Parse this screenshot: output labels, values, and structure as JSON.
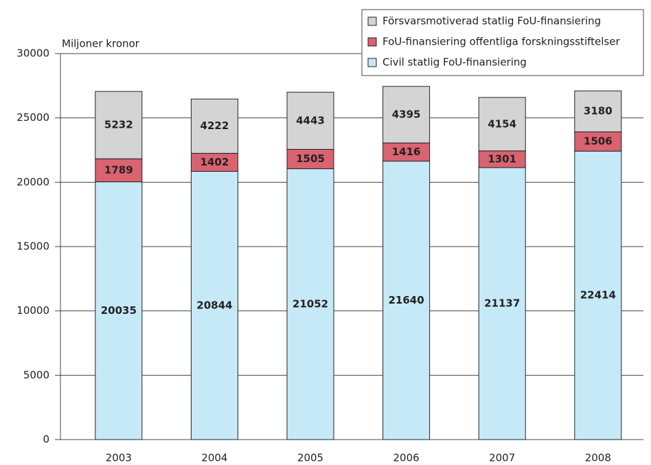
{
  "chart_data": {
    "type": "stacked_bar",
    "y_axis_label": "Miljoner kronor",
    "categories": [
      "2003",
      "2004",
      "2005",
      "2006",
      "2007",
      "2008"
    ],
    "series": [
      {
        "name": "Civil statlig FoU-finansiering",
        "color": "#c6e9f8",
        "values": [
          20035,
          20844,
          21052,
          21640,
          21137,
          22414
        ]
      },
      {
        "name": "FoU-finansiering offentliga forskningsstiftelser",
        "color": "#d9636f",
        "values": [
          1789,
          1402,
          1505,
          1416,
          1301,
          1506
        ]
      },
      {
        "name": "Försvarsmotiverad statlig FoU-finansiering",
        "color": "#d4d4d4",
        "values": [
          5232,
          4222,
          4443,
          4395,
          4154,
          3180
        ]
      }
    ],
    "ylim": [
      0,
      30000
    ],
    "yticks": [
      0,
      5000,
      10000,
      15000,
      20000,
      25000,
      30000
    ],
    "grid": true,
    "legend": "upper right"
  }
}
